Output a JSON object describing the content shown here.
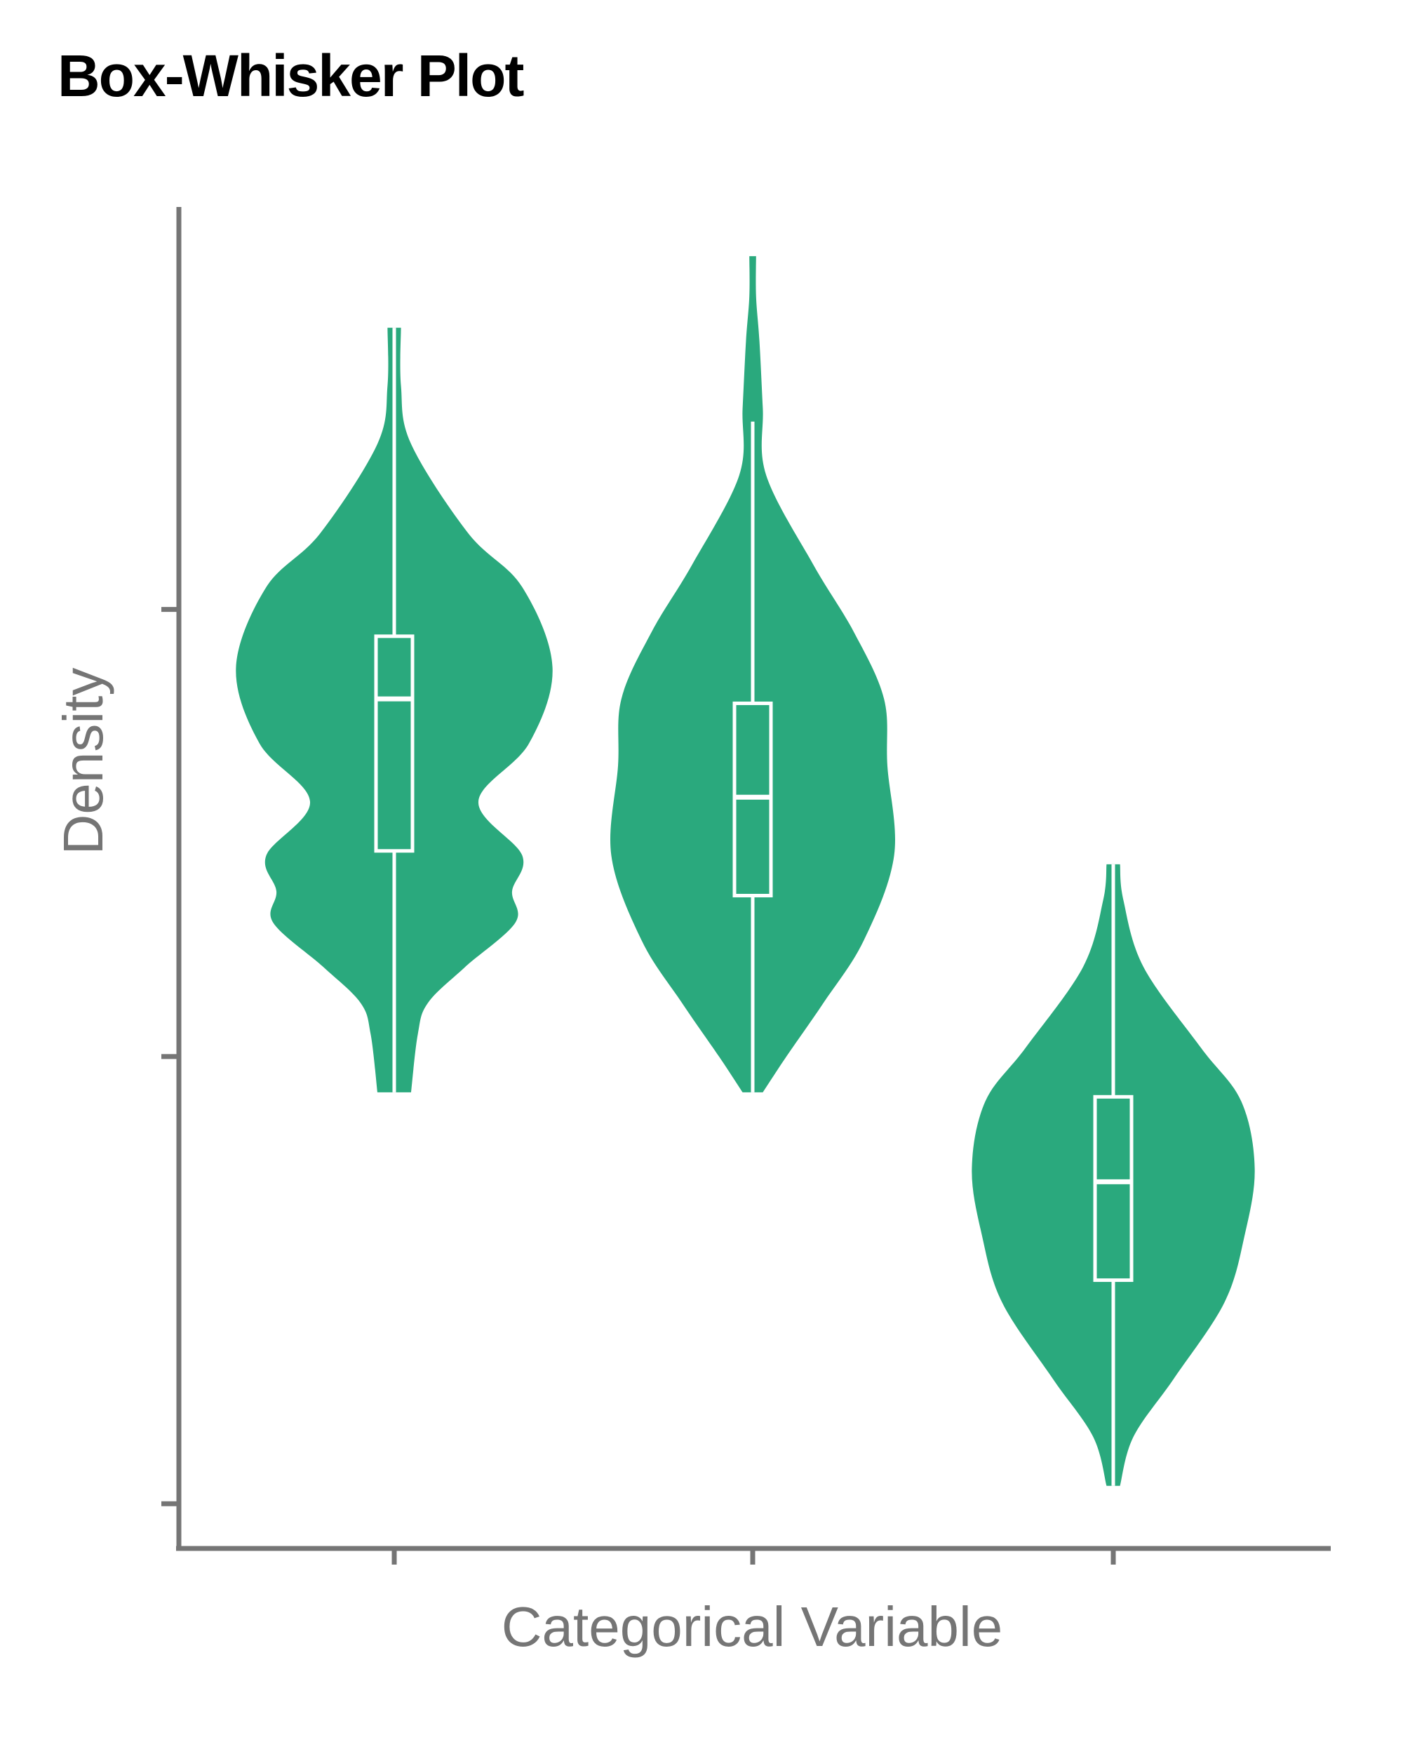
{
  "chart_data": {
    "type": "violin",
    "title": "Box-Whisker Plot",
    "xlabel": "Categorical Variable",
    "ylabel": "Density",
    "ylim": [
      0,
      3
    ],
    "yticks": [
      0.1,
      1.1,
      2.1
    ],
    "grid": false,
    "legend": "none",
    "fill_color": "#2AA97D",
    "box_color": "#FFFFFF",
    "axis_color": "#757575",
    "series": [
      {
        "min": 1.02,
        "max": 2.73,
        "whisker_low": 1.02,
        "whisker_high": 2.73,
        "q1": 1.56,
        "median": 1.9,
        "q3": 2.04,
        "density": [
          [
            1.02,
            0.05
          ],
          [
            1.15,
            0.07
          ],
          [
            1.22,
            0.1
          ],
          [
            1.3,
            0.21
          ],
          [
            1.4,
            0.36
          ],
          [
            1.47,
            0.35
          ],
          [
            1.55,
            0.38
          ],
          [
            1.67,
            0.25
          ],
          [
            1.8,
            0.4
          ],
          [
            1.97,
            0.47
          ],
          [
            2.15,
            0.38
          ],
          [
            2.27,
            0.22
          ],
          [
            2.47,
            0.05
          ],
          [
            2.6,
            0.02
          ],
          [
            2.73,
            0.02
          ]
        ]
      },
      {
        "min": 1.02,
        "max": 2.89,
        "whisker_low": 1.02,
        "whisker_high": 2.52,
        "q1": 1.46,
        "median": 1.68,
        "q3": 1.89,
        "density": [
          [
            1.02,
            0.03
          ],
          [
            1.1,
            0.1
          ],
          [
            1.22,
            0.21
          ],
          [
            1.36,
            0.33
          ],
          [
            1.55,
            0.42
          ],
          [
            1.75,
            0.4
          ],
          [
            1.9,
            0.39
          ],
          [
            2.05,
            0.3
          ],
          [
            2.2,
            0.18
          ],
          [
            2.4,
            0.04
          ],
          [
            2.55,
            0.03
          ],
          [
            2.7,
            0.02
          ],
          [
            2.8,
            0.01
          ],
          [
            2.89,
            0.01
          ]
        ]
      },
      {
        "min": 0.14,
        "max": 1.53,
        "whisker_low": 0.14,
        "whisker_high": 1.53,
        "q1": 0.6,
        "median": 0.82,
        "q3": 1.01,
        "density": [
          [
            0.14,
            0.02
          ],
          [
            0.25,
            0.06
          ],
          [
            0.38,
            0.18
          ],
          [
            0.55,
            0.33
          ],
          [
            0.7,
            0.39
          ],
          [
            0.85,
            0.42
          ],
          [
            1.0,
            0.38
          ],
          [
            1.12,
            0.26
          ],
          [
            1.3,
            0.09
          ],
          [
            1.45,
            0.03
          ],
          [
            1.53,
            0.02
          ]
        ]
      }
    ]
  }
}
